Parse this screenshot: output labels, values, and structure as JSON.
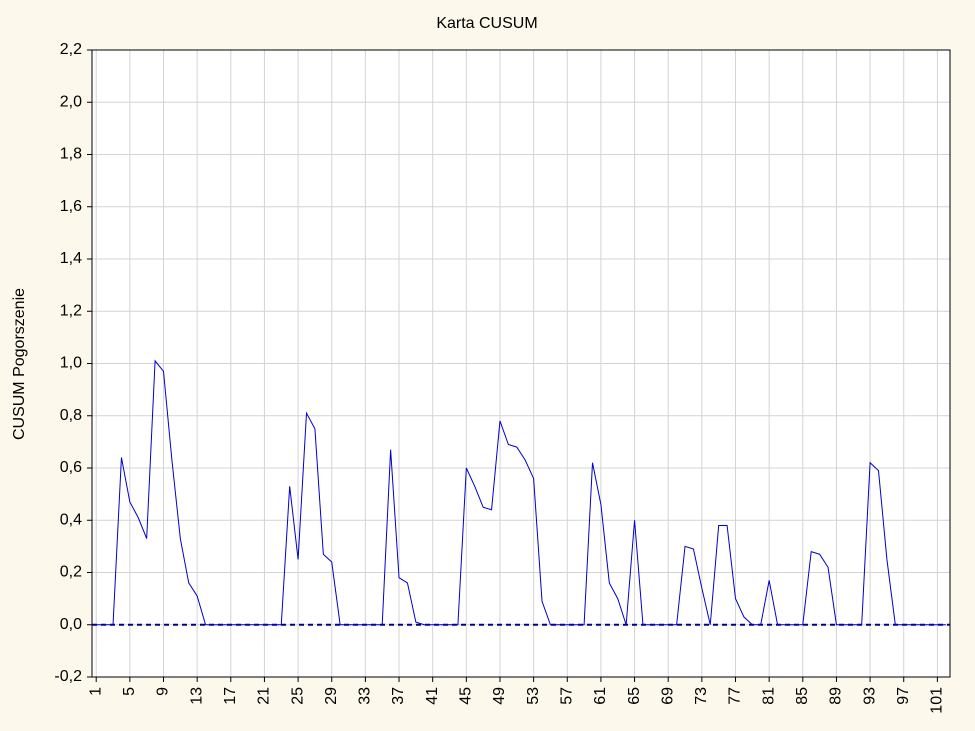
{
  "chart_data": {
    "type": "line",
    "title": "Karta CUSUM",
    "ylabel": "CUSUM Pogorszenie",
    "x": [
      1,
      2,
      3,
      4,
      5,
      6,
      7,
      8,
      9,
      10,
      11,
      12,
      13,
      14,
      15,
      16,
      17,
      18,
      19,
      20,
      21,
      22,
      23,
      24,
      25,
      26,
      27,
      28,
      29,
      30,
      31,
      32,
      33,
      34,
      35,
      36,
      37,
      38,
      39,
      40,
      41,
      42,
      43,
      44,
      45,
      46,
      47,
      48,
      49,
      50,
      51,
      52,
      53,
      54,
      55,
      56,
      57,
      58,
      59,
      60,
      61,
      62,
      63,
      64,
      65,
      66,
      67,
      68,
      69,
      70,
      71,
      72,
      73,
      74,
      75,
      76,
      77,
      78,
      79,
      80,
      81,
      82,
      83,
      84,
      85,
      86,
      87,
      88,
      89,
      90,
      91,
      92,
      93,
      94,
      95,
      96,
      97,
      98,
      99,
      100,
      101,
      102
    ],
    "values": [
      0,
      0,
      0,
      0.64,
      0.47,
      0.41,
      0.33,
      1.01,
      0.97,
      0.63,
      0.33,
      0.16,
      0.11,
      0,
      0,
      0,
      0,
      0,
      0,
      0,
      0,
      0,
      0,
      0.53,
      0.25,
      0.81,
      0.75,
      0.27,
      0.24,
      0,
      0,
      0,
      0,
      0,
      0,
      0.67,
      0.18,
      0.16,
      0.01,
      0,
      0,
      0,
      0,
      0,
      0.6,
      0.53,
      0.45,
      0.44,
      0.78,
      0.69,
      0.68,
      0.63,
      0.56,
      0.09,
      0,
      0,
      0,
      0,
      0,
      0.62,
      0.46,
      0.16,
      0.1,
      0,
      0.4,
      0,
      0,
      0,
      0,
      0,
      0.3,
      0.29,
      0.14,
      0,
      0.38,
      0.38,
      0.1,
      0.03,
      0,
      0,
      0.17,
      0,
      0,
      0,
      0,
      0.28,
      0.27,
      0.22,
      0,
      0,
      0,
      0,
      0.62,
      0.59,
      0.25,
      0,
      0,
      0,
      0,
      0,
      0,
      0
    ],
    "color": "#0000cc",
    "center_line": 0,
    "center_line_color": "#000080",
    "xlim": [
      0.5,
      102.5
    ],
    "xticks": [
      1,
      5,
      9,
      13,
      17,
      21,
      25,
      29,
      33,
      37,
      41,
      45,
      49,
      53,
      57,
      61,
      65,
      69,
      73,
      77,
      81,
      85,
      89,
      93,
      97,
      101
    ],
    "ylim": [
      -0.2,
      2.2
    ],
    "yticks": [
      {
        "value": -0.2,
        "label": "-0,2"
      },
      {
        "value": 0,
        "label": "0,0"
      },
      {
        "value": 0.2,
        "label": "0,2"
      },
      {
        "value": 0.4,
        "label": "0,4"
      },
      {
        "value": 0.6,
        "label": "0,6"
      },
      {
        "value": 0.8,
        "label": "0,8"
      },
      {
        "value": 1.0,
        "label": "1,0"
      },
      {
        "value": 1.2,
        "label": "1,2"
      },
      {
        "value": 1.4,
        "label": "1,4"
      },
      {
        "value": 1.6,
        "label": "1,6"
      },
      {
        "value": 1.8,
        "label": "1,8"
      },
      {
        "value": 2.0,
        "label": "2,0"
      },
      {
        "value": 2.2,
        "label": "2,2"
      }
    ],
    "grid": true
  }
}
